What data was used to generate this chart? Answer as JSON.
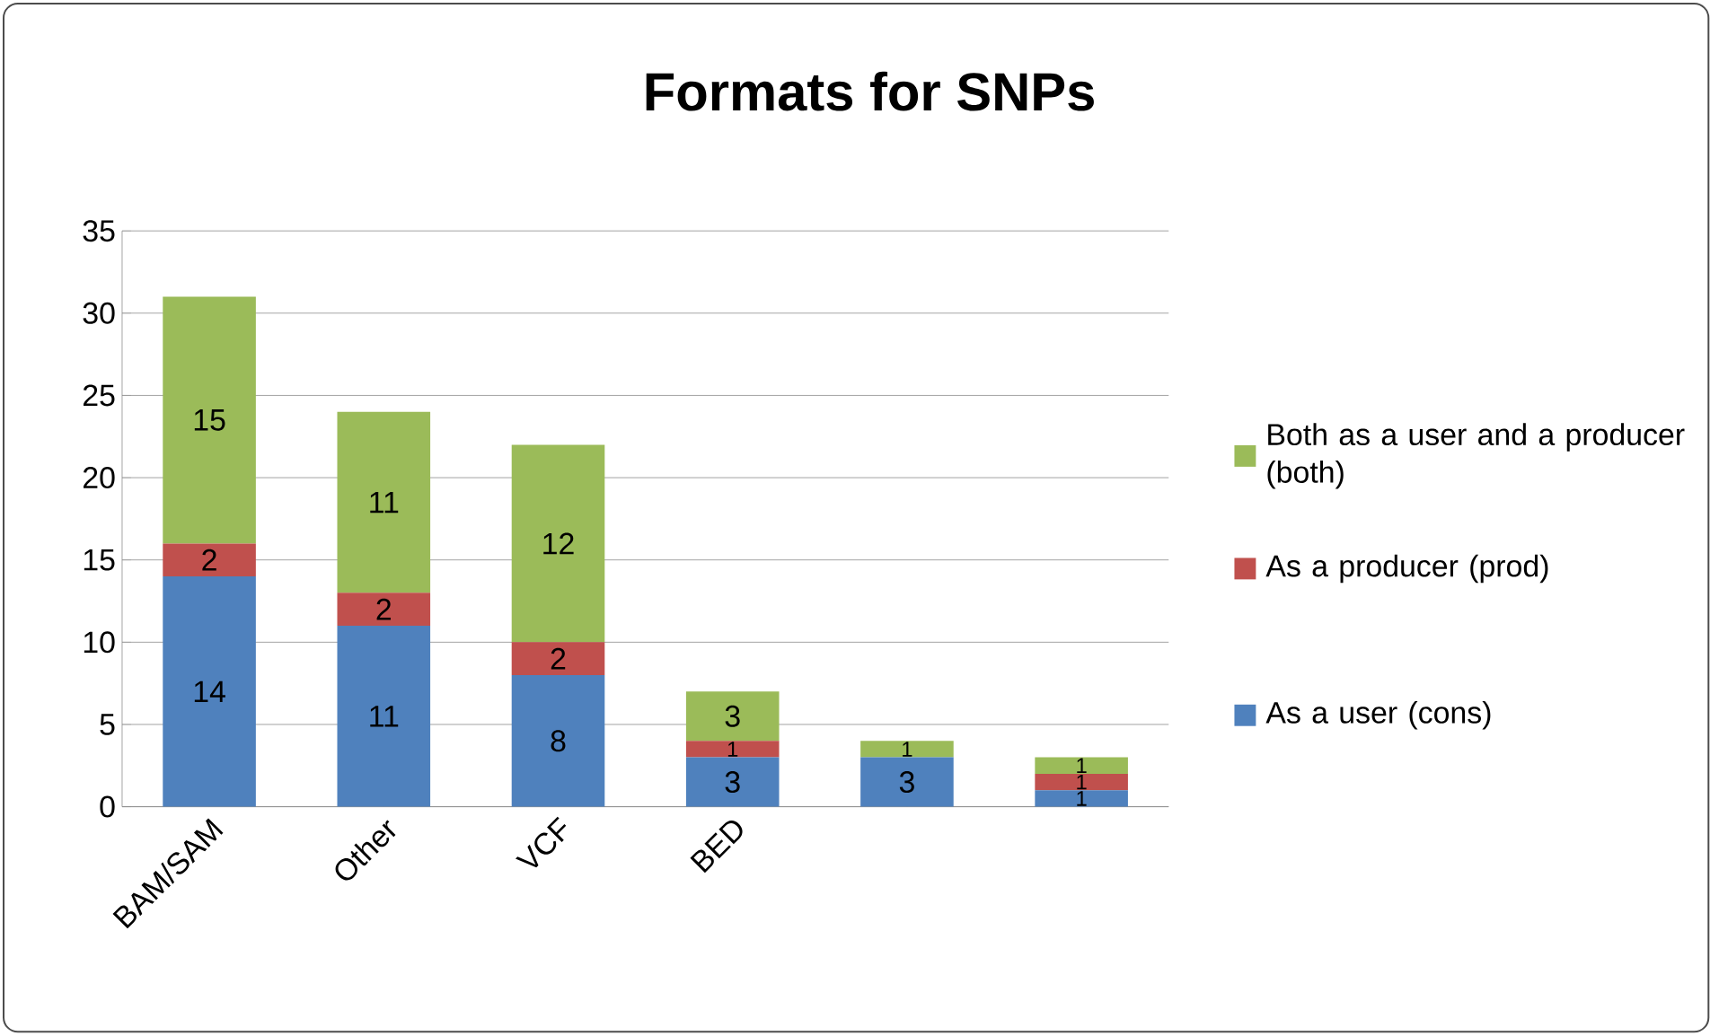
{
  "chart_data": {
    "type": "bar",
    "stacked": true,
    "title": "Formats for SNPs",
    "categories": [
      "BAM/SAM",
      "Other",
      "VCF",
      "BED",
      null,
      null
    ],
    "series": [
      {
        "name": "As a user (cons)",
        "color": "#4f81bd",
        "values": [
          14,
          11,
          8,
          3,
          3,
          1
        ],
        "value_labels": [
          "14",
          "11",
          "8",
          "3",
          "3",
          "1"
        ]
      },
      {
        "name": "As a producer (prod)",
        "color": "#c0504d",
        "values": [
          2,
          2,
          2,
          1,
          0,
          1
        ],
        "value_labels": [
          "2",
          "2",
          "2",
          "1",
          null,
          "1"
        ]
      },
      {
        "name": "Both as a user and a producer (both)",
        "color": "#9bbb59",
        "values": [
          15,
          11,
          12,
          3,
          1,
          1
        ],
        "value_labels": [
          "15",
          "11",
          "12",
          "3",
          "1",
          "1"
        ]
      }
    ],
    "ylim": [
      0,
      35
    ],
    "yticks": [
      0,
      5,
      10,
      15,
      20,
      25,
      30,
      35
    ],
    "grid": "y",
    "legend": "right"
  }
}
